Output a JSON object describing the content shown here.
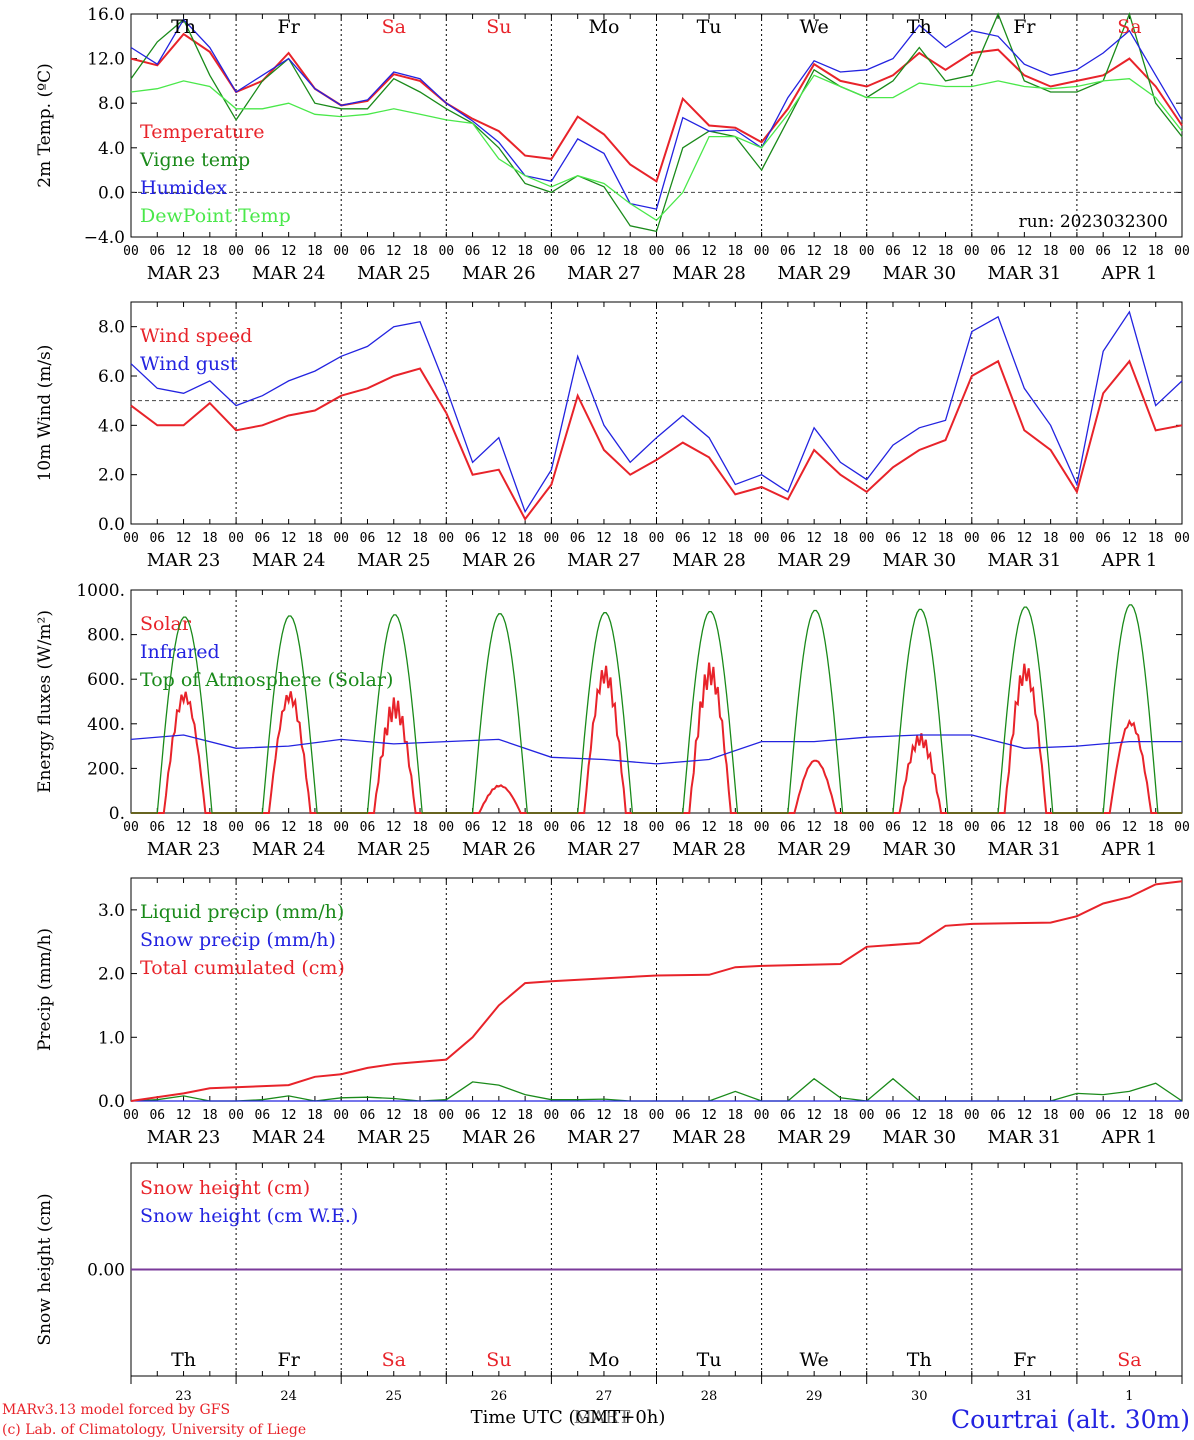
{
  "meta": {
    "station": "Courtrai (alt. 30m)",
    "run": "run: 2023032300",
    "credit_line1": "MARv3.13 model forced by GFS",
    "credit_line2": "(c) Lab. of Climatology, University of Liege",
    "xaxis_title": "Time UTC (GMT+0h)",
    "xaxis_title_overlap": "MART"
  },
  "colors": {
    "red": "#e8232a",
    "dark_green": "#1a8a1a",
    "blue": "#2323e0",
    "light_green": "#4ae84a",
    "purple": "#7a3a9a",
    "axis": "#000000"
  },
  "time_axis": {
    "hour_ticks": [
      "00",
      "06",
      "12",
      "18"
    ],
    "date_labels": [
      "MAR 23",
      "MAR 24",
      "MAR 25",
      "MAR 26",
      "MAR 27",
      "MAR 28",
      "MAR 29",
      "MAR 30",
      "MAR 31",
      "APR  1"
    ],
    "weekdays": [
      {
        "name": "Th",
        "weekend": false
      },
      {
        "name": "Fr",
        "weekend": false
      },
      {
        "name": "Sa",
        "weekend": true
      },
      {
        "name": "Su",
        "weekend": true
      },
      {
        "name": "Mo",
        "weekend": false
      },
      {
        "name": "Tu",
        "weekend": false
      },
      {
        "name": "We",
        "weekend": false
      },
      {
        "name": "Th",
        "weekend": false
      },
      {
        "name": "Fr",
        "weekend": false
      },
      {
        "name": "Sa",
        "weekend": true
      }
    ],
    "day_numbers": [
      "23",
      "24",
      "25",
      "26",
      "27",
      "28",
      "29",
      "30",
      "31",
      "1"
    ],
    "span_hours": 240
  },
  "chart_data": [
    {
      "id": "temperature",
      "type": "line",
      "ylabel": "2m Temp. (ºC)",
      "ylim": [
        -4,
        16
      ],
      "yticks": [
        "−4.0",
        "0.0",
        "4.0",
        "8.0",
        "12.0",
        "16.0"
      ],
      "ytick_values": [
        -4,
        0,
        4,
        8,
        12,
        16
      ],
      "ref_line": 0,
      "x_hours": [
        0,
        6,
        12,
        18,
        24,
        30,
        36,
        42,
        48,
        54,
        60,
        66,
        72,
        78,
        84,
        90,
        96,
        102,
        108,
        114,
        120,
        126,
        132,
        138,
        144,
        150,
        156,
        162,
        168,
        174,
        180,
        186,
        192,
        198,
        204,
        210,
        216,
        222,
        228,
        234,
        240
      ],
      "series": [
        {
          "name": "Temperature",
          "color": "red",
          "values": [
            12.0,
            11.4,
            14.2,
            12.6,
            9.0,
            10.0,
            12.5,
            9.3,
            7.8,
            8.2,
            10.6,
            10.0,
            8.0,
            6.6,
            5.5,
            3.3,
            3.0,
            6.8,
            5.2,
            2.5,
            1.0,
            8.4,
            6.0,
            5.8,
            4.5,
            7.5,
            11.5,
            10.0,
            9.5,
            10.5,
            12.5,
            11.0,
            12.5,
            12.8,
            10.5,
            9.5,
            10.0,
            10.5,
            12.0,
            9.5,
            6.0
          ]
        },
        {
          "name": "Vigne temp",
          "color": "dark_green",
          "values": [
            10.2,
            13.5,
            15.5,
            10.5,
            6.5,
            10.0,
            12.0,
            8.0,
            7.5,
            7.5,
            10.2,
            9.0,
            7.5,
            6.2,
            4.0,
            0.8,
            0.0,
            1.5,
            0.5,
            -3.0,
            -3.5,
            4.0,
            5.5,
            5.0,
            2.0,
            6.5,
            11.0,
            9.5,
            8.5,
            10.0,
            13.0,
            10.0,
            10.5,
            16.0,
            10.0,
            9.0,
            9.0,
            10.0,
            16.0,
            8.0,
            5.0
          ]
        },
        {
          "name": "Humidex",
          "color": "blue",
          "values": [
            13.0,
            11.5,
            15.5,
            13.0,
            9.0,
            10.5,
            12.0,
            9.3,
            7.8,
            8.3,
            10.8,
            10.2,
            8.0,
            6.4,
            4.5,
            1.5,
            1.0,
            4.8,
            3.5,
            -1.0,
            -1.5,
            6.7,
            5.5,
            5.6,
            4.0,
            8.5,
            11.8,
            10.8,
            11.0,
            12.0,
            15.0,
            13.0,
            14.5,
            14.0,
            11.5,
            10.5,
            11.0,
            12.5,
            14.5,
            10.5,
            6.5
          ]
        },
        {
          "name": "DewPoint Temp",
          "color": "light_green",
          "values": [
            9.0,
            9.3,
            10.0,
            9.5,
            7.5,
            7.5,
            8.0,
            7.0,
            6.8,
            7.0,
            7.5,
            7.0,
            6.5,
            6.2,
            3.0,
            1.5,
            0.5,
            1.5,
            0.8,
            -1.0,
            -2.5,
            0.0,
            5.0,
            5.0,
            4.0,
            7.0,
            10.5,
            9.5,
            8.5,
            8.5,
            9.8,
            9.5,
            9.5,
            10.0,
            9.5,
            9.3,
            9.5,
            10.0,
            10.2,
            8.5,
            5.5
          ]
        }
      ]
    },
    {
      "id": "wind",
      "type": "line",
      "ylabel": "10m Wind (m/s)",
      "ylim": [
        0,
        9
      ],
      "yticks": [
        "0.0",
        "2.0",
        "4.0",
        "6.0",
        "8.0"
      ],
      "ytick_values": [
        0,
        2,
        4,
        6,
        8
      ],
      "ref_line": 5,
      "x_hours": [
        0,
        6,
        12,
        18,
        24,
        30,
        36,
        42,
        48,
        54,
        60,
        66,
        72,
        78,
        84,
        90,
        96,
        102,
        108,
        114,
        120,
        126,
        132,
        138,
        144,
        150,
        156,
        162,
        168,
        174,
        180,
        186,
        192,
        198,
        204,
        210,
        216,
        222,
        228,
        234,
        240
      ],
      "series": [
        {
          "name": "Wind speed",
          "color": "red",
          "values": [
            4.8,
            4.0,
            4.0,
            4.9,
            3.8,
            4.0,
            4.4,
            4.6,
            5.2,
            5.5,
            6.0,
            6.3,
            4.5,
            2.0,
            2.2,
            0.2,
            1.6,
            5.2,
            3.0,
            2.0,
            2.6,
            3.3,
            2.7,
            1.2,
            1.5,
            1.0,
            3.0,
            2.0,
            1.3,
            2.3,
            3.0,
            3.4,
            6.0,
            6.6,
            3.8,
            3.0,
            1.3,
            5.3,
            6.6,
            3.8,
            4.0
          ]
        },
        {
          "name": "Wind gust",
          "color": "blue",
          "values": [
            6.5,
            5.5,
            5.3,
            5.8,
            4.8,
            5.2,
            5.8,
            6.2,
            6.8,
            7.2,
            8.0,
            8.2,
            5.5,
            2.5,
            3.5,
            0.5,
            2.2,
            6.8,
            4.0,
            2.5,
            3.5,
            4.4,
            3.5,
            1.6,
            2.0,
            1.3,
            3.9,
            2.5,
            1.8,
            3.2,
            3.9,
            4.2,
            7.8,
            8.4,
            5.5,
            4.0,
            1.6,
            7.0,
            8.6,
            4.8,
            5.8
          ]
        }
      ]
    },
    {
      "id": "energy",
      "type": "line",
      "ylabel": "Energy fluxes (W/m²)",
      "ylim": [
        0,
        1000
      ],
      "yticks": [
        "0.",
        "200.",
        "400.",
        "600.",
        "800.",
        "1000."
      ],
      "ytick_values": [
        0,
        200,
        400,
        600,
        800,
        1000
      ],
      "series": [
        {
          "name": "Solar",
          "color": "red",
          "daily_peak": [
            560,
            560,
            520,
            130,
            670,
            680,
            250,
            360,
            680,
            430
          ]
        },
        {
          "name": "Infrared",
          "color": "blue",
          "x_hours": [
            0,
            12,
            24,
            36,
            48,
            60,
            72,
            84,
            96,
            108,
            120,
            132,
            144,
            156,
            168,
            180,
            192,
            204,
            216,
            228,
            240
          ],
          "values": [
            330,
            350,
            290,
            300,
            330,
            310,
            320,
            330,
            250,
            240,
            220,
            240,
            320,
            320,
            340,
            350,
            350,
            290,
            300,
            320,
            320
          ]
        },
        {
          "name": "Top of Atmosphere (Solar)",
          "color": "dark_green",
          "daily_peak": [
            880,
            885,
            890,
            895,
            900,
            905,
            910,
            915,
            925,
            935
          ]
        }
      ]
    },
    {
      "id": "precip",
      "type": "line",
      "ylabel": "Precip (mm/h)",
      "ylim": [
        0,
        3.5
      ],
      "yticks": [
        "0.0",
        "1.0",
        "2.0",
        "3.0"
      ],
      "ytick_values": [
        0,
        1,
        2,
        3
      ],
      "series": [
        {
          "name": "Liquid precip (mm/h)",
          "color": "dark_green",
          "x_hours": [
            0,
            6,
            12,
            18,
            24,
            30,
            36,
            42,
            48,
            54,
            60,
            66,
            72,
            78,
            84,
            90,
            96,
            102,
            108,
            114,
            120,
            126,
            132,
            138,
            144,
            150,
            156,
            162,
            168,
            174,
            180,
            186,
            192,
            198,
            204,
            210,
            216,
            222,
            228,
            234,
            240
          ],
          "values": [
            0,
            0.02,
            0.08,
            0,
            0,
            0.02,
            0.08,
            0,
            0.05,
            0.06,
            0.04,
            0,
            0.02,
            0.3,
            0.25,
            0.1,
            0.02,
            0.02,
            0.03,
            0,
            0,
            0,
            0,
            0.15,
            0,
            0,
            0.35,
            0.05,
            0,
            0.35,
            0,
            0,
            0,
            0,
            0,
            0,
            0.12,
            0.1,
            0.15,
            0.28,
            0
          ]
        },
        {
          "name": "Snow precip (mm/h)",
          "color": "blue",
          "x_hours": [
            0,
            240
          ],
          "values": [
            0,
            0
          ]
        },
        {
          "name": "Total cumulated (cm)",
          "color": "red",
          "x_hours": [
            0,
            12,
            18,
            36,
            42,
            48,
            54,
            60,
            72,
            78,
            84,
            90,
            96,
            120,
            132,
            138,
            144,
            162,
            168,
            180,
            186,
            192,
            210,
            216,
            222,
            228,
            234,
            240
          ],
          "values": [
            0,
            0.12,
            0.2,
            0.25,
            0.38,
            0.42,
            0.52,
            0.58,
            0.65,
            1.0,
            1.5,
            1.85,
            1.88,
            1.97,
            1.98,
            2.1,
            2.12,
            2.15,
            2.42,
            2.48,
            2.75,
            2.78,
            2.8,
            2.9,
            3.1,
            3.2,
            3.4,
            3.45
          ]
        }
      ]
    },
    {
      "id": "snow",
      "type": "line",
      "ylabel": "Snow height (cm)",
      "ylim": [
        -1,
        1
      ],
      "yticks": [
        "0.00"
      ],
      "ytick_values": [
        0
      ],
      "series": [
        {
          "name": "Snow height (cm)",
          "color": "red",
          "x_hours": [
            0,
            240
          ],
          "values": [
            0,
            0
          ]
        },
        {
          "name": "Snow height (cm W.E.)",
          "color": "blue",
          "x_hours": [
            0,
            240
          ],
          "values": [
            0,
            0
          ]
        }
      ]
    }
  ]
}
